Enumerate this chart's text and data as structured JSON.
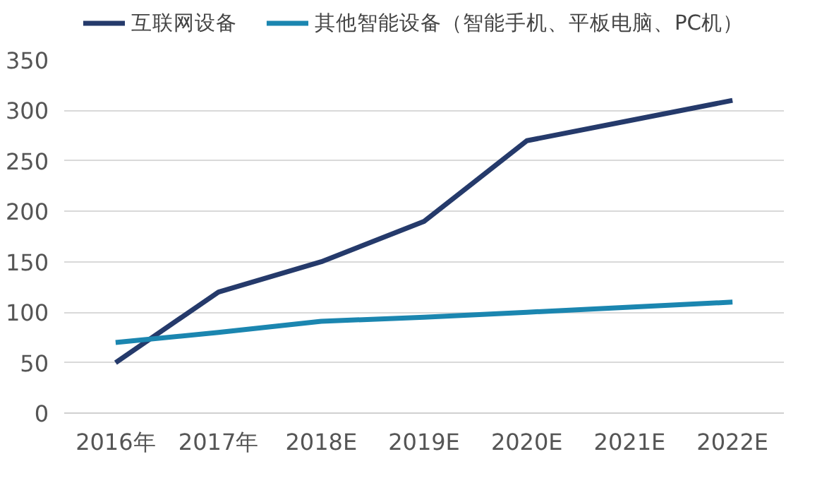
{
  "chart_data": {
    "type": "line",
    "categories": [
      "2016年",
      "2017年",
      "2018E",
      "2019E",
      "2020E",
      "2021E",
      "2022E"
    ],
    "series": [
      {
        "name": "互联网设备",
        "color": "#253a6b",
        "values": [
          50,
          120,
          150,
          190,
          270,
          290,
          310
        ]
      },
      {
        "name": "其他智能设备（智能手机、平板电脑、PC机）",
        "color": "#1b86b0",
        "values": [
          70,
          80,
          91,
          95,
          100,
          105,
          110
        ]
      }
    ],
    "ylim": [
      0,
      350
    ],
    "yticks": [
      0,
      50,
      100,
      150,
      200,
      250,
      300,
      350
    ],
    "grid": "y",
    "legend": "top",
    "marker": "none",
    "line_style": "solid"
  }
}
